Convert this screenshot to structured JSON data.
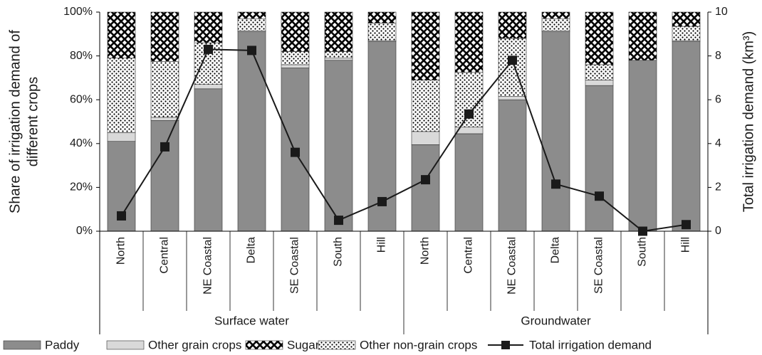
{
  "chart_data": {
    "type": "bar",
    "y_label": [
      "Share of irrigation demand of",
      "different crops"
    ],
    "y2_label": "Total irrigation demand (km³)",
    "groups": [
      {
        "name": "Surface water",
        "categories": [
          "North",
          "Central",
          "NE Coastal",
          "Delta",
          "SE Coastal",
          "South",
          "Hill"
        ]
      },
      {
        "name": "Groundwater",
        "categories": [
          "North",
          "Central",
          "NE Coastal",
          "Delta",
          "SE Coastal",
          "South",
          "Hill"
        ]
      }
    ],
    "ylim": [
      0,
      100
    ],
    "yticks": [
      {
        "value": 0,
        "label": "0%"
      },
      {
        "value": 20,
        "label": "20%"
      },
      {
        "value": 40,
        "label": "40%"
      },
      {
        "value": 60,
        "label": "60%"
      },
      {
        "value": 80,
        "label": "80%"
      },
      {
        "value": 100,
        "label": "100%"
      }
    ],
    "y2lim": [
      0,
      10
    ],
    "y2ticks": [
      0,
      2,
      4,
      6,
      8,
      10
    ],
    "stacked": true,
    "series": [
      {
        "name": "Paddy",
        "color": "#8c8c8c",
        "stack_order": 0,
        "values": [
          41,
          50.5,
          65,
          91,
          74.5,
          78,
          86.5,
          39.5,
          44.5,
          60,
          91,
          66.5,
          78,
          86.5
        ]
      },
      {
        "name": "Other grain crops",
        "color": "#d9d9d9",
        "stack_order": 1,
        "values": [
          4,
          1.5,
          2,
          0.5,
          1.5,
          1,
          0.5,
          6,
          3,
          1.5,
          0.5,
          2.5,
          0,
          0.5
        ]
      },
      {
        "name": "Sugar",
        "color": "#000000",
        "pattern": "weave",
        "stack_order": 3,
        "values": [
          21,
          22.5,
          14,
          3,
          18,
          18,
          5,
          31,
          27.5,
          12,
          3,
          24,
          22,
          6.5
        ]
      },
      {
        "name": "Other non-grain crops",
        "color": "#000000",
        "pattern": "dots",
        "stack_order": 2,
        "values": [
          34,
          25.5,
          19,
          5.5,
          6,
          3,
          8,
          23.5,
          25,
          26.5,
          5.5,
          7,
          0,
          6.5
        ]
      },
      {
        "name": "Total irrigation demand",
        "type": "line",
        "axis": "y2",
        "color": "#1a1a1a",
        "values": [
          0.7,
          3.85,
          8.3,
          8.25,
          3.6,
          0.5,
          1.35,
          2.35,
          5.35,
          7.8,
          2.15,
          1.6,
          0,
          0.3
        ]
      }
    ]
  }
}
